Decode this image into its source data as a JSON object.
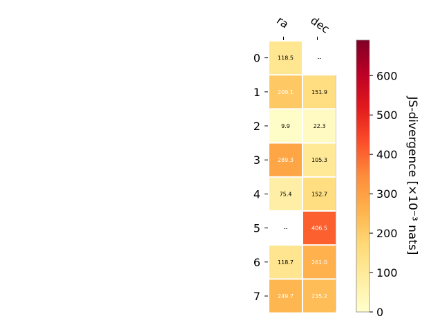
{
  "chart_data": {
    "type": "heatmap",
    "columns": [
      "ra",
      "dec"
    ],
    "rows": [
      "0",
      "1",
      "2",
      "3",
      "4",
      "5",
      "6",
      "7"
    ],
    "values": [
      [
        118.5,
        null
      ],
      [
        209.1,
        151.9
      ],
      [
        9.9,
        22.3
      ],
      [
        289.3,
        105.3
      ],
      [
        75.4,
        152.7
      ],
      [
        null,
        406.5
      ],
      [
        118.7,
        261.0
      ],
      [
        249.7,
        235.2
      ]
    ],
    "cell_labels": [
      [
        "118.5",
        "--"
      ],
      [
        "209.1",
        "151.9"
      ],
      [
        "9.9",
        "22.3"
      ],
      [
        "289.3",
        "105.3"
      ],
      [
        "75.4",
        "152.7"
      ],
      [
        "--",
        "406.5"
      ],
      [
        "118.7",
        "261.0"
      ],
      [
        "249.7",
        "235.2"
      ]
    ],
    "colorbar": {
      "label": "JS-divergence [×10⁻³ nats]",
      "range": [
        0,
        690
      ],
      "ticks": [
        "0",
        "100",
        "200",
        "300",
        "400",
        "500",
        "600"
      ],
      "tick_values": [
        0,
        100,
        200,
        300,
        400,
        500,
        600
      ],
      "colormap": "YlOrRd"
    },
    "grid": false
  }
}
